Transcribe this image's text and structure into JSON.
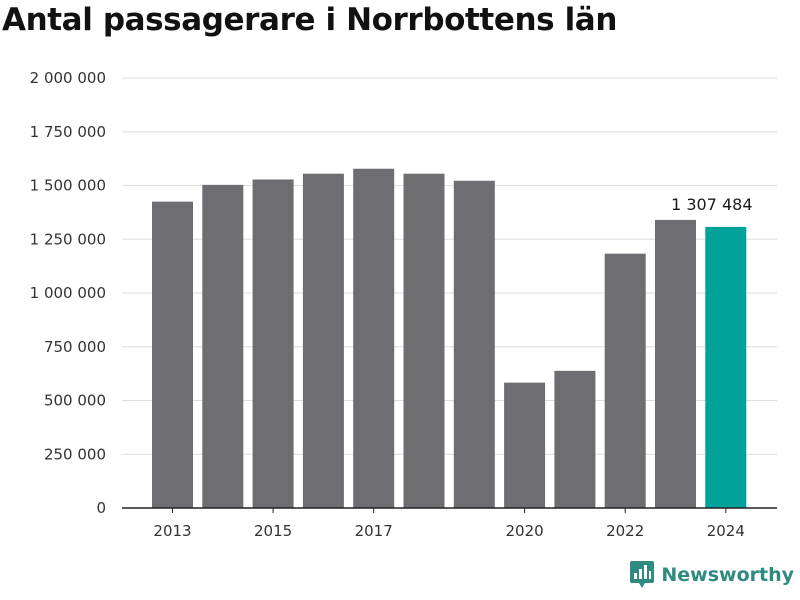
{
  "title": "Antal passagerare i Norrbottens län",
  "brand": {
    "name": "Newsworthy",
    "icon": "newsworthy-logo-icon",
    "color": "#2f8b80"
  },
  "chart_data": {
    "type": "bar",
    "title": "Antal passagerare i Norrbottens län",
    "xlabel": "",
    "ylabel": "",
    "categories": [
      "2013",
      "2014",
      "2015",
      "2016",
      "2017",
      "2018",
      "2019",
      "2020",
      "2021",
      "2022",
      "2023",
      "2024"
    ],
    "x_tick_labels": [
      "2013",
      "",
      "2015",
      "",
      "2017",
      "",
      "",
      "2020",
      "",
      "2022",
      "",
      "2024"
    ],
    "values": [
      1425000,
      1503000,
      1528000,
      1555000,
      1578000,
      1555000,
      1522000,
      583000,
      638000,
      1183000,
      1340000,
      1307484
    ],
    "ylim": [
      0,
      2000000
    ],
    "y_ticks": [
      0,
      250000,
      500000,
      750000,
      1000000,
      1250000,
      1500000,
      1750000,
      2000000
    ],
    "y_tick_labels": [
      "0",
      "250 000",
      "500 000",
      "750 000",
      "1 000 000",
      "1 250 000",
      "1 500 000",
      "1 750 000",
      "2 000 000"
    ],
    "highlight_index": 11,
    "highlight_label": "1 307 484",
    "colors": {
      "bar": "#6e6d72",
      "highlight": "#00a29a",
      "grid": "#dddddd",
      "axis": "#222222"
    },
    "grid": true,
    "legend": "none"
  }
}
